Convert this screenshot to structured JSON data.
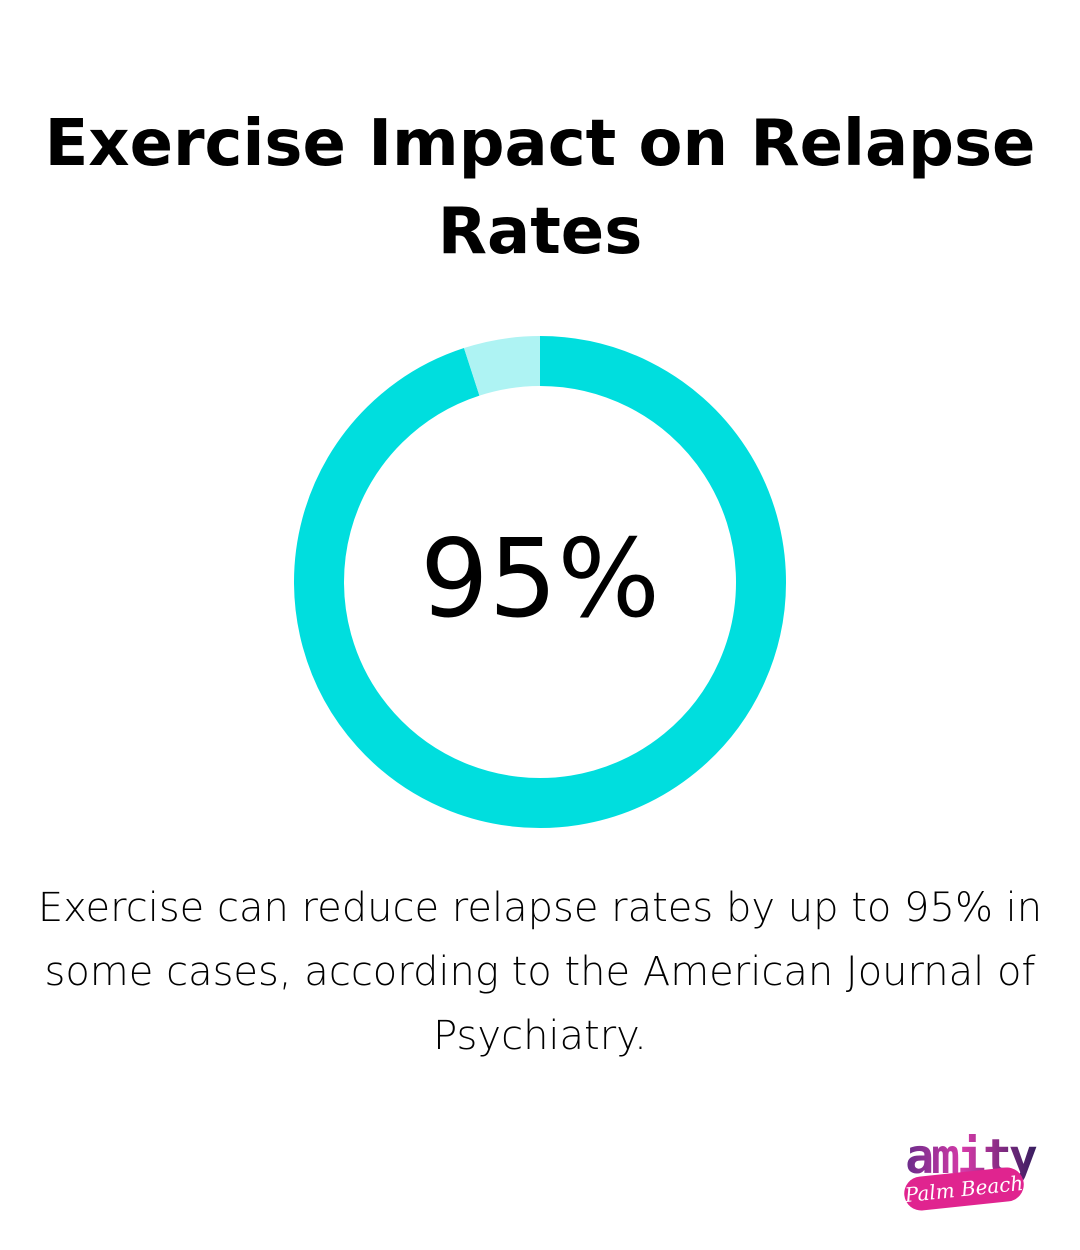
{
  "title": "Exercise Impact on Relapse Rates",
  "center_label": "95%",
  "description": "Exercise can reduce relapse rates by up to 95% in some cases, according to the American Journal of Psychiatry.",
  "logo": {
    "name": "amity",
    "tagline": "Palm Beach"
  },
  "colors": {
    "primary": "#00dede",
    "remainder": "#aef3f3",
    "text": "#000000",
    "background": "#ffffff"
  },
  "chart_data": {
    "type": "pie",
    "variant": "donut",
    "categories": [
      "",
      ""
    ],
    "values": [
      95,
      5
    ],
    "title": "Exercise Impact on Relapse Rates",
    "center_label": "95%"
  }
}
